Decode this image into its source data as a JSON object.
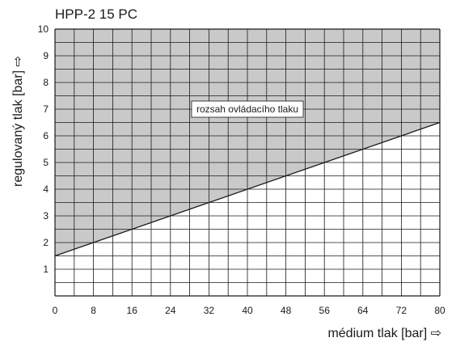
{
  "chart_data": {
    "type": "area",
    "title": "HPP-2 15 PC",
    "xlabel": "médium tlak [bar] ⇨",
    "ylabel": "regulovaný tlak [bar] ⇨",
    "xlim": [
      0,
      80
    ],
    "ylim": [
      0,
      10
    ],
    "xticks": [
      "0",
      "8",
      "16",
      "24",
      "32",
      "40",
      "48",
      "56",
      "64",
      "72",
      "80"
    ],
    "yticks": [
      "1",
      "2",
      "3",
      "4",
      "5",
      "6",
      "7",
      "8",
      "9",
      "10"
    ],
    "grid": true,
    "series": [
      {
        "x": [
          0,
          80
        ],
        "y": [
          1.5,
          6.5
        ],
        "fill": "above"
      }
    ],
    "annotation": {
      "text": "rozsah ovládacího tlaku",
      "x": 40,
      "y": 7
    },
    "colors": {
      "region": "#c9c9c9",
      "grid": "#1a1a1a",
      "line": "#1a1a1a"
    }
  }
}
